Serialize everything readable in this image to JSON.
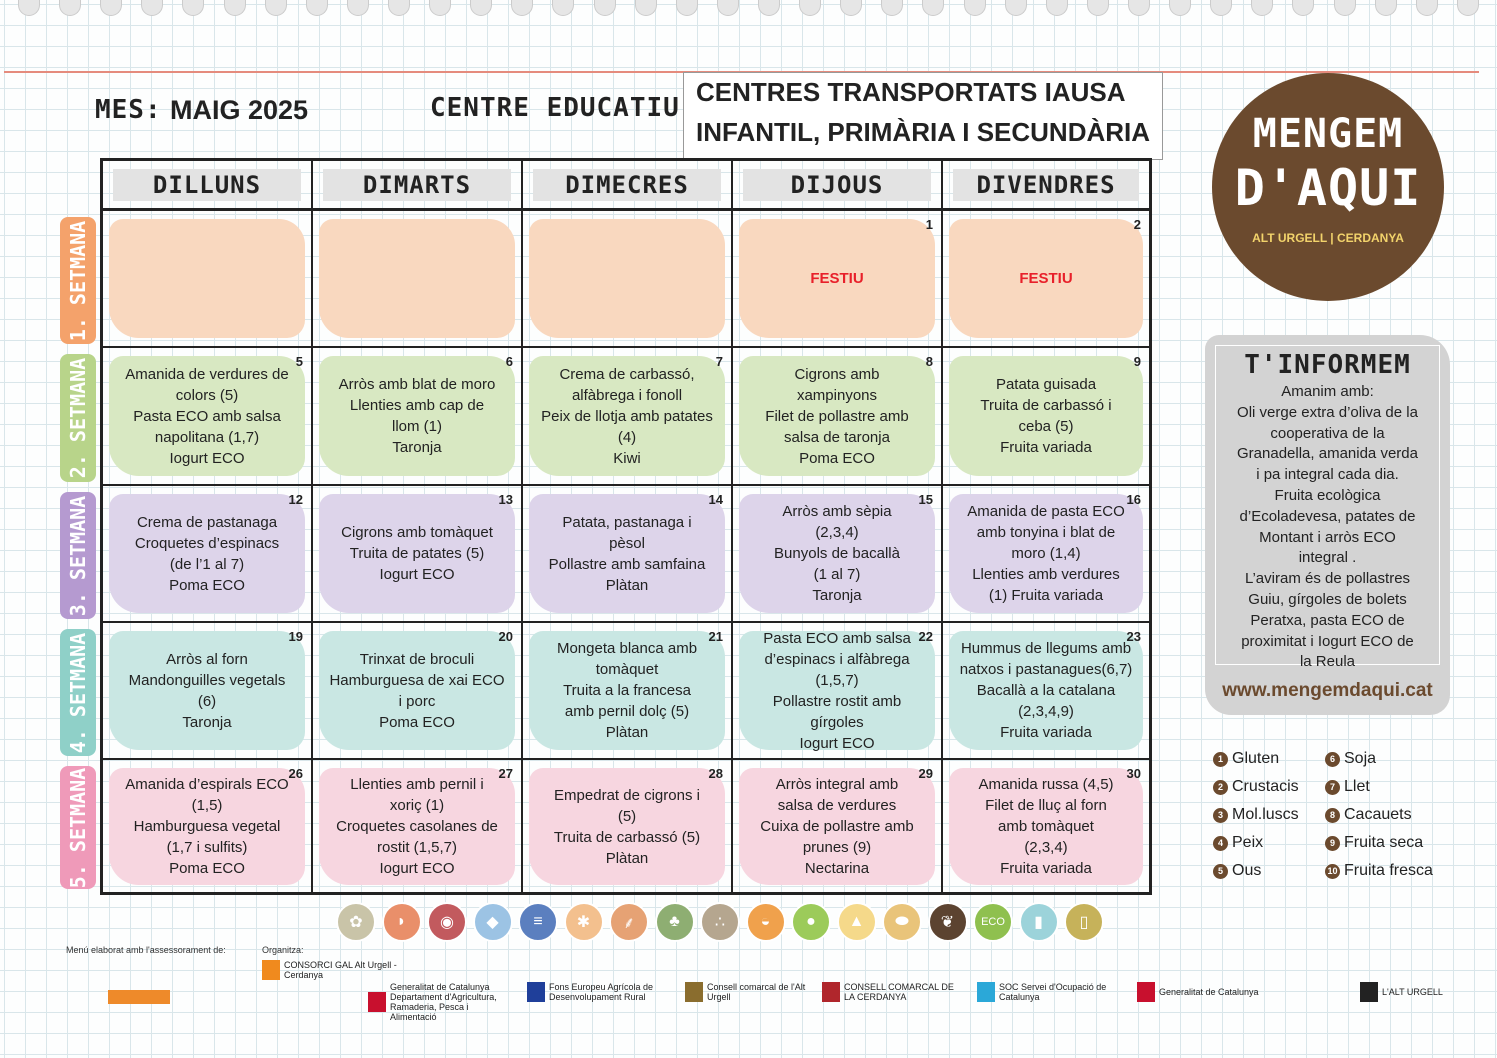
{
  "header": {
    "mes_label": "MES:",
    "mes_value": "MAIG 2025",
    "centre_label": "CENTRE EDUCATIU:",
    "centre_line1": "CENTRES TRANSPORTATS IAUSA",
    "centre_line2": "INFANTIL, PRIMÀRIA I SECUNDÀRIA"
  },
  "days": [
    "DILLUNS",
    "DIMARTS",
    "DIMECRES",
    "DIJOUS",
    "DIVENDRES"
  ],
  "weeks": [
    {
      "label": "1. SETMANA",
      "color": "#f4a26b",
      "bg": "#f9d8bf",
      "cells": [
        {
          "num": "",
          "lines": []
        },
        {
          "num": "",
          "lines": []
        },
        {
          "num": "",
          "lines": []
        },
        {
          "num": "1",
          "lines": [
            "FESTIU"
          ],
          "festiu": true
        },
        {
          "num": "2",
          "lines": [
            "FESTIU"
          ],
          "festiu": true
        }
      ]
    },
    {
      "label": "2. SETMANA",
      "color": "#b8d48a",
      "bg": "#d8e8c2",
      "cells": [
        {
          "num": "5",
          "lines": [
            "Amanida de verdures de",
            "colors (5)",
            "Pasta ECO amb salsa",
            "napolitana (1,7)",
            "Iogurt ECO"
          ]
        },
        {
          "num": "6",
          "lines": [
            "Arròs amb blat de moro",
            "Llenties amb cap de",
            "llom (1)",
            "Taronja"
          ]
        },
        {
          "num": "7",
          "lines": [
            "Crema de carbassó,",
            "alfàbrega i fonoll",
            "Peix de llotja amb patates",
            "(4)",
            "Kiwi"
          ]
        },
        {
          "num": "8",
          "lines": [
            "Cigrons amb",
            "xampinyons",
            "Filet de pollastre amb",
            "salsa de taronja",
            "Poma ECO"
          ]
        },
        {
          "num": "9",
          "lines": [
            "Patata guisada",
            "Truita de carbassó i",
            "ceba (5)",
            "Fruita variada"
          ]
        }
      ]
    },
    {
      "label": "3. SETMANA",
      "color": "#b59ad0",
      "bg": "#ddd4ea",
      "cells": [
        {
          "num": "12",
          "lines": [
            "Crema de pastanaga",
            "Croquetes d’espinacs",
            "(de l’1 al 7)",
            "Poma ECO"
          ]
        },
        {
          "num": "13",
          "lines": [
            "Cigrons amb tomàquet",
            "Truita de patates (5)",
            "Iogurt ECO"
          ]
        },
        {
          "num": "14",
          "lines": [
            "Patata, pastanaga  i",
            "pèsol",
            "Pollastre amb samfaina",
            "Plàtan"
          ]
        },
        {
          "num": "15",
          "lines": [
            "Arròs amb sèpia",
            "(2,3,4)",
            "Bunyols de bacallà",
            "(1 al 7)",
            "Taronja"
          ]
        },
        {
          "num": "16",
          "lines": [
            "Amanida de pasta ECO",
            "amb tonyina i blat de",
            "moro (1,4)",
            "Llenties amb verdures",
            "(1) Fruita variada"
          ]
        }
      ]
    },
    {
      "label": "4. SETMANA",
      "color": "#8fd0c8",
      "bg": "#c9e7e3",
      "cells": [
        {
          "num": "19",
          "lines": [
            "Arròs al forn",
            "Mandonguilles vegetals",
            "(6)",
            "Taronja"
          ]
        },
        {
          "num": "20",
          "lines": [
            "Trinxat de broculi",
            "Hamburguesa de xai ECO",
            "i porc",
            "Poma ECO"
          ]
        },
        {
          "num": "21",
          "lines": [
            "Mongeta blanca amb",
            "tomàquet",
            "Truita a la francesa",
            "amb pernil dolç (5)",
            "Plàtan"
          ]
        },
        {
          "num": "22",
          "lines": [
            "Pasta ECO amb salsa",
            "d’espinacs i alfàbrega",
            "(1,5,7)",
            "Pollastre rostit amb",
            "gírgoles",
            "Iogurt ECO"
          ]
        },
        {
          "num": "23",
          "lines": [
            "Hummus de llegums amb",
            "natxos i pastanagues(6,7)",
            "Bacallà a la catalana",
            "(2,3,4,9)",
            "Fruita variada"
          ]
        }
      ]
    },
    {
      "label": "5. SETMANA",
      "color": "#ef9ab9",
      "bg": "#f7d6e0",
      "cells": [
        {
          "num": "26",
          "lines": [
            "Amanida d’espirals ECO",
            "(1,5)",
            "Hamburguesa vegetal",
            "(1,7 i sulfits)",
            "Poma ECO"
          ]
        },
        {
          "num": "27",
          "lines": [
            "Llenties amb pernil i",
            "xoriç  (1)",
            "Croquetes casolanes de",
            "rostit (1,5,7)",
            "Iogurt ECO"
          ]
        },
        {
          "num": "28",
          "lines": [
            "Empedrat de cigrons i",
            "(5)",
            "Truita de carbassó (5)",
            "Plàtan"
          ]
        },
        {
          "num": "29",
          "lines": [
            "Arròs integral amb",
            "salsa de verdures",
            "Cuixa de pollastre amb",
            "prunes (9)",
            "Nectarina"
          ]
        },
        {
          "num": "30",
          "lines": [
            "Amanida russa (4,5)",
            "Filet de lluç al forn",
            "amb tomàquet",
            "(2,3,4)",
            "Fruita variada"
          ]
        }
      ]
    }
  ],
  "logo": {
    "line1": "MENGEM",
    "line2": "D'AQUI",
    "line3": "ALT URGELL | CERDANYA",
    "brand_color": "#6b4a2e"
  },
  "info": {
    "title": "T'INFORMEM",
    "lines": [
      "Amanim amb:",
      "Oli verge extra d’oliva de la",
      "cooperativa de la",
      "Granadella, amanida verda",
      "i pa integral cada dia.",
      "Fruita ecològica",
      "d’Ecoladevesa, patates de",
      "Montant i arròs ECO",
      "integral .",
      "L’aviram és de pollastres",
      "Guiu, gírgoles de bolets",
      "Peratxa, pasta ECO de",
      "proximitat i  Iogurt ECO de",
      "la Reula"
    ],
    "url": "www.mengemdaqui.cat"
  },
  "allergens": [
    {
      "n": "1",
      "label": "Gluten"
    },
    {
      "n": "2",
      "label": "Crustacis"
    },
    {
      "n": "3",
      "label": "Mol.luscs"
    },
    {
      "n": "4",
      "label": "Peix"
    },
    {
      "n": "5",
      "label": "Ous"
    },
    {
      "n": "6",
      "label": "Soja"
    },
    {
      "n": "7",
      "label": "Llet"
    },
    {
      "n": "8",
      "label": "Cacauets"
    },
    {
      "n": "9",
      "label": "Fruita seca"
    },
    {
      "n": "10",
      "label": "Fruita fresca"
    }
  ],
  "food_icons": [
    {
      "name": "cereal-icon",
      "color": "#c9c4a8",
      "glyph": "✿"
    },
    {
      "name": "chicken-leg-icon",
      "color": "#e98f6a",
      "glyph": "◗"
    },
    {
      "name": "meat-icon",
      "color": "#c25a5e",
      "glyph": "◉"
    },
    {
      "name": "fish-icon",
      "color": "#9cc3e4",
      "glyph": "◆"
    },
    {
      "name": "sardines-icon",
      "color": "#5b7fbf",
      "glyph": "≡"
    },
    {
      "name": "pasta-icon",
      "color": "#f3c08e",
      "glyph": "✱"
    },
    {
      "name": "wheat-icon",
      "color": "#e6a274",
      "glyph": "⸙"
    },
    {
      "name": "vegetable-icon",
      "color": "#8eae72",
      "glyph": "♣"
    },
    {
      "name": "legumes-icon",
      "color": "#b5a68f",
      "glyph": "∴"
    },
    {
      "name": "egg-chicken-icon",
      "color": "#f0a14c",
      "glyph": "◒"
    },
    {
      "name": "apple-icon",
      "color": "#9ccb5a",
      "glyph": "●"
    },
    {
      "name": "cheese-icon",
      "color": "#f5d98a",
      "glyph": "▲"
    },
    {
      "name": "bread-icon",
      "color": "#e9c47a",
      "glyph": "⬬"
    },
    {
      "name": "leaf-icon",
      "color": "#5c4330",
      "glyph": "❦"
    },
    {
      "name": "eco-icon",
      "color": "#8fc04f",
      "glyph": "ECO"
    },
    {
      "name": "milk-jug-icon",
      "color": "#9cd3da",
      "glyph": "▮"
    },
    {
      "name": "oil-jar-icon",
      "color": "#c6b25a",
      "glyph": "▯"
    }
  ],
  "footer": {
    "advice_label": "Menú elaborat amb l'assessorament de:",
    "organizer_label": "Organitza:",
    "logos": [
      "CONSORCI GAL Alt Urgell - Cerdanya",
      "Generalitat de Catalunya Departament d'Agricultura, Ramaderia, Pesca i Alimentació",
      "Fons Europeu Agrícola de Desenvolupament Rural",
      "Consell comarcal de l'Alt Urgell",
      "CONSELL COMARCAL DE LA CERDANYA",
      "SOC Servei d'Ocupació de Catalunya",
      "Generalitat de Catalunya",
      "L'ALT URGELL"
    ]
  }
}
